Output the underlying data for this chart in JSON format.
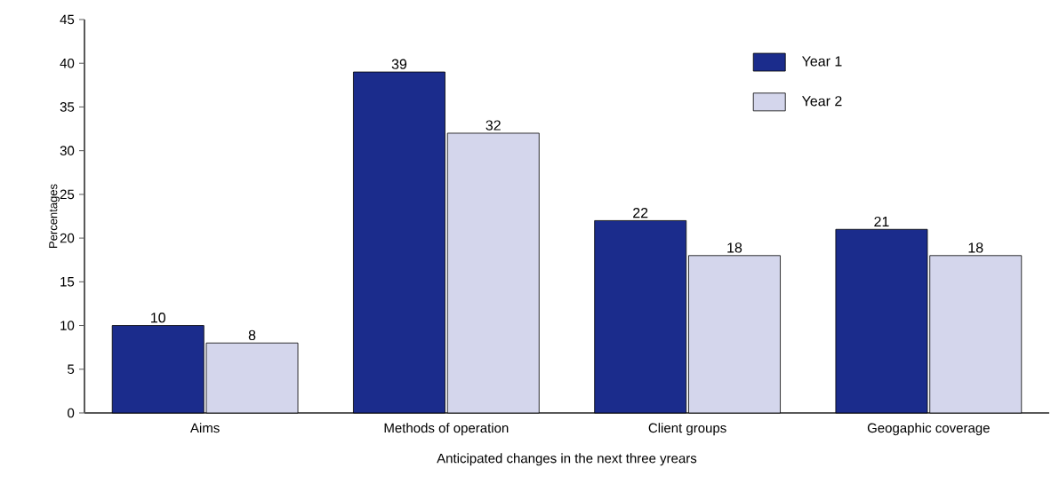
{
  "chart_data": {
    "type": "bar",
    "categories": [
      "Aims",
      "Methods of operation",
      "Client groups",
      "Geogaphic coverage"
    ],
    "series": [
      {
        "name": "Year 1",
        "color": "#1b2c8c",
        "values": [
          10,
          39,
          22,
          21
        ]
      },
      {
        "name": "Year 2",
        "color": "#d4d6ec",
        "values": [
          8,
          32,
          18,
          18
        ]
      }
    ],
    "xlabel": "Anticipated changes in the next three yrears",
    "ylabel": "Percentages",
    "ylim": [
      0,
      45
    ],
    "yticks": [
      0,
      5,
      10,
      15,
      20,
      25,
      30,
      35,
      40,
      45
    ],
    "data_labels": true,
    "legend": "top right"
  }
}
